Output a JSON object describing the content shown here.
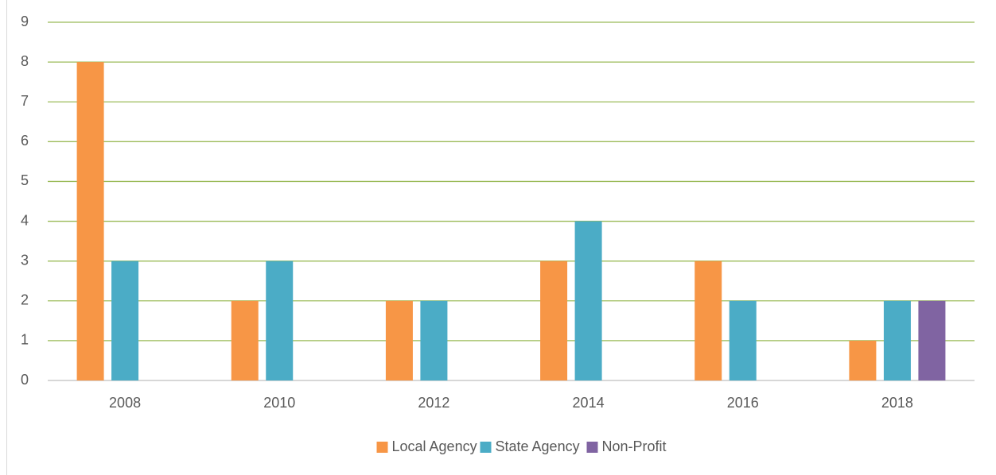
{
  "chart_data": {
    "type": "bar",
    "categories": [
      "2008",
      "2010",
      "2012",
      "2014",
      "2016",
      "2018"
    ],
    "series": [
      {
        "name": "Local Agency",
        "color": "#f79646",
        "values": [
          8,
          2,
          2,
          3,
          3,
          1
        ]
      },
      {
        "name": "State Agency",
        "color": "#4bacc6",
        "values": [
          3,
          3,
          2,
          4,
          2,
          2
        ]
      },
      {
        "name": "Non-Profit",
        "color": "#8064a2",
        "values": [
          0,
          0,
          0,
          0,
          0,
          2
        ]
      }
    ],
    "ylim": [
      0,
      9
    ],
    "yticks": [
      0,
      1,
      2,
      3,
      4,
      5,
      6,
      7,
      8,
      9
    ],
    "grid": true,
    "legend": "bottom"
  }
}
